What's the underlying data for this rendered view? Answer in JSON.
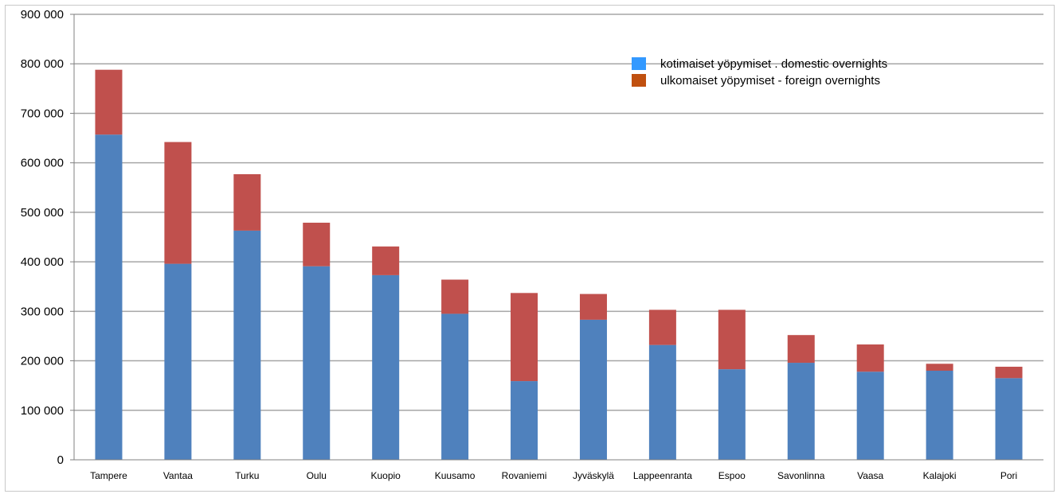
{
  "chart_data": {
    "type": "bar",
    "stacked": true,
    "categories": [
      "Tampere",
      "Vantaa",
      "Turku",
      "Oulu",
      "Kuopio",
      "Kuusamo",
      "Rovaniemi",
      "Jyväskylä",
      "Lappeenranta",
      "Espoo",
      "Savonlinna",
      "Vaasa",
      "Kalajoki",
      "Pori"
    ],
    "series": [
      {
        "name": "kotimaiset yöpymiset . domestic overnights",
        "color": "#4f81bd",
        "legend_color": "#3399ff",
        "values": [
          657000,
          396000,
          463000,
          391000,
          373000,
          295000,
          159000,
          283000,
          232000,
          183000,
          196000,
          178000,
          180000,
          165000
        ]
      },
      {
        "name": "ulkomaiset yöpymiset - foreign overnights",
        "color": "#c0504d",
        "legend_color": "#c0500f",
        "values": [
          131000,
          246000,
          114000,
          88000,
          58000,
          69000,
          178000,
          52000,
          71000,
          120000,
          56000,
          55000,
          14000,
          23000
        ]
      }
    ],
    "ylim": [
      0,
      900000
    ],
    "yticks": [
      "0",
      "100 000",
      "200 000",
      "300 000",
      "400 000",
      "500 000",
      "600 000",
      "700 000",
      "800 000",
      "900 000"
    ],
    "ytick_values": [
      0,
      100000,
      200000,
      300000,
      400000,
      500000,
      600000,
      700000,
      800000,
      900000
    ],
    "grid": true,
    "legend_position": "top-right",
    "title": "",
    "xlabel": "",
    "ylabel": ""
  }
}
